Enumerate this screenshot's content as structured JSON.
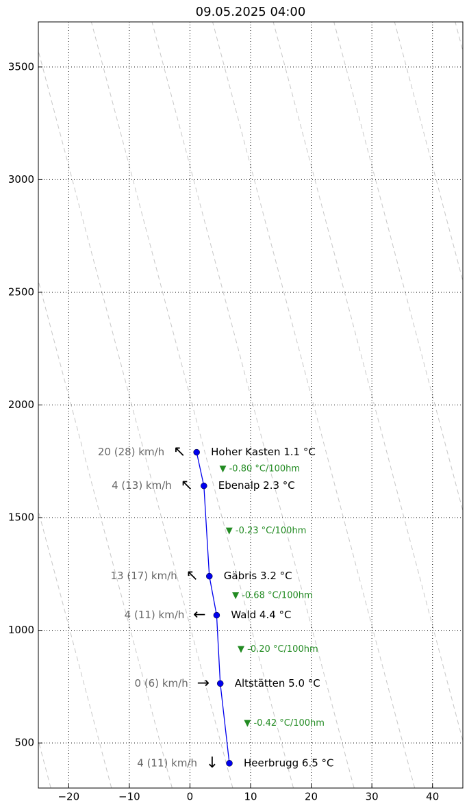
{
  "chart_data": {
    "type": "line",
    "title": "09.05.2025 04:00",
    "x": [
      6.5,
      5.0,
      4.4,
      3.2,
      2.3,
      1.1
    ],
    "values": [
      410,
      764,
      1067,
      1240,
      1641,
      1790
    ],
    "color": "#0000ee",
    "labels": [
      "Heerbrugg 6.5 °C",
      "Altstätten 5.0 °C",
      "Wald 4.4 °C",
      "Gäbris 3.2 °C",
      "Ebenalp 2.3 °C",
      "Hoher Kasten 1.1 °C"
    ],
    "wind_labels": [
      "4 (11) km/h",
      "0 (6) km/h",
      "4 (11) km/h",
      "13 (17) km/h",
      "4 (13) km/h",
      "20 (28) km/h"
    ],
    "wind_arrows": [
      "↓",
      "→",
      "←",
      "↖",
      "↖",
      "↖"
    ],
    "lapse_labels": [
      "▼ -0.42 °C/100hm",
      "▼ -0.20 °C/100hm",
      "▼ -0.68 °C/100hm",
      "▼ -0.23 °C/100hm",
      "▼ -0.80 °C/100hm"
    ],
    "lapse_color": "#228b22",
    "xlim": [
      -25,
      45
    ],
    "ylim": [
      300,
      3700
    ],
    "xticks": [
      {
        "value": -20,
        "label": "−20"
      },
      {
        "value": -10,
        "label": "−10"
      },
      0,
      10,
      20,
      30,
      40
    ],
    "yticks": [
      500,
      1000,
      1500,
      2000,
      2500,
      3000,
      3500
    ],
    "grid": true
  }
}
